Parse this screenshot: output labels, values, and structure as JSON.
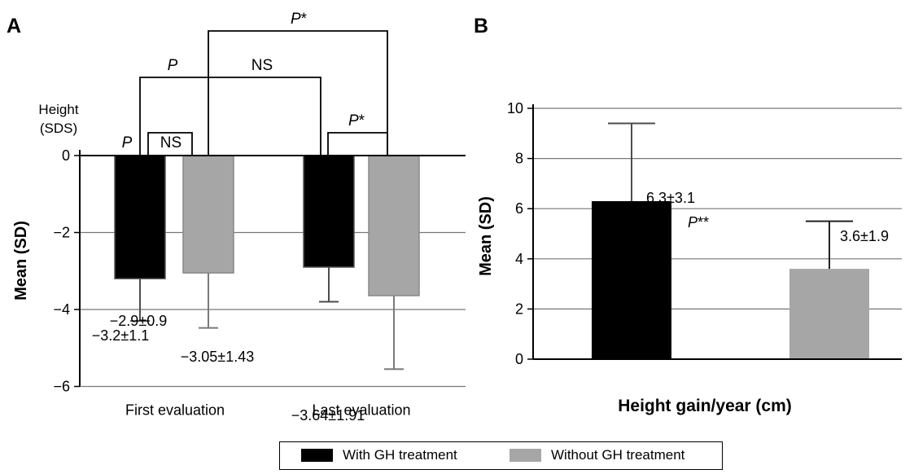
{
  "chart_data": [
    {
      "panel_label": "A",
      "type": "bar",
      "categories": [
        "First evaluation",
        "Last evaluation"
      ],
      "series": [
        {
          "name": "With GH treatment",
          "values": [
            -3.2,
            -2.9
          ],
          "sd": [
            1.1,
            0.9
          ],
          "labels": [
            "−3.2±1.1",
            "−2.9±0.9"
          ]
        },
        {
          "name": "Without GH treatment",
          "values": [
            -3.05,
            -3.64
          ],
          "sd": [
            1.43,
            1.91
          ],
          "labels": [
            "−3.05±1.43",
            "−3.64±1.91"
          ]
        }
      ],
      "ylabel": "Mean (SD)",
      "ylabel_top": [
        "Height",
        "(SDS)"
      ],
      "ylim": [
        -6,
        0
      ],
      "yticks": [
        "0",
        "−2",
        "−4",
        "−6"
      ],
      "grid": true,
      "significance": [
        {
          "prefix": "P",
          "suffix": ""
        },
        {
          "prefix": "",
          "suffix": "NS"
        },
        {
          "prefix": "P",
          "suffix": ""
        },
        {
          "prefix": "",
          "suffix": "NS"
        },
        {
          "prefix": "P",
          "suffix": "*"
        },
        {
          "prefix": "P",
          "suffix": "*"
        }
      ]
    },
    {
      "panel_label": "B",
      "type": "bar",
      "categories": [
        "With GH treatment",
        "Without GH treatment"
      ],
      "values": [
        6.3,
        3.6
      ],
      "sd": [
        3.1,
        1.9
      ],
      "labels": [
        "6.3±3.1",
        "3.6±1.9"
      ],
      "xlabel": "Height gain/year (cm)",
      "ylabel": "Mean (SD)",
      "ylim": [
        0,
        10
      ],
      "yticks": [
        "0",
        "2",
        "4",
        "6",
        "8",
        "10"
      ],
      "grid": true,
      "significance": {
        "prefix": "P",
        "suffix": "**"
      }
    }
  ],
  "legend": [
    {
      "label": "With GH treatment",
      "color": "#000000"
    },
    {
      "label": "Without GH treatment",
      "color": "#a6a6a6"
    }
  ],
  "colors": {
    "with_gh": "#000000",
    "without_gh": "#a6a6a6",
    "grid": "#777777"
  }
}
